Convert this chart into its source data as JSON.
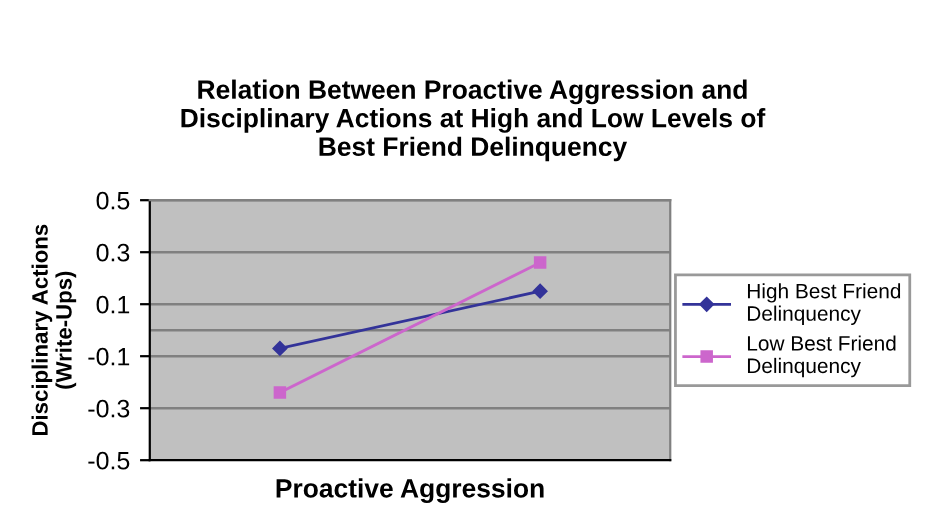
{
  "chart_data": {
    "type": "line",
    "title": "Relation Between Proactive Aggression and\nDisciplinary Actions at High and Low Levels of\nBest Friend Delinquency",
    "xlabel": "Proactive Aggression",
    "ylabel": "Disciplinary Actions\n(Write-Ups)",
    "categories": [
      null,
      null
    ],
    "series": [
      {
        "name": "High Best Friend\nDelinquency",
        "color": "#333399",
        "marker": "diamond",
        "values": [
          -0.07,
          0.15
        ]
      },
      {
        "name": "Low Best Friend\nDelinquency",
        "color": "#cc66cc",
        "marker": "square",
        "values": [
          -0.24,
          0.26
        ]
      }
    ],
    "ylim": [
      -0.5,
      0.5
    ],
    "yticks": [
      -0.5,
      -0.3,
      -0.1,
      0.1,
      0.3,
      0.5
    ],
    "ref_lines": [
      {
        "axis": "y",
        "value": 0,
        "label": null,
        "color": "#808080"
      }
    ],
    "grid": "y",
    "legend": "right",
    "line_style": "solid"
  }
}
